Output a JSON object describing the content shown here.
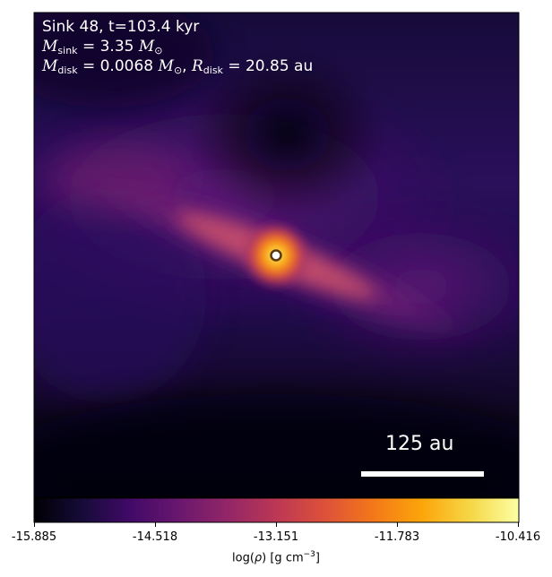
{
  "annotation": {
    "line1": "Sink 48, t=103.4 kyr",
    "sink_symbol": "M",
    "sink_sub": "sink",
    "sink_value": " = 3.35 ",
    "sink_unit_symbol": "M",
    "sink_unit_sub": "⊙",
    "disk_symbol": "M",
    "disk_sub": "disk",
    "disk_value": " = 0.0068 ",
    "disk_unit_symbol": "M",
    "disk_unit_sub": "⊙",
    "sep": ", ",
    "rdisk_symbol": "R",
    "rdisk_sub": "disk",
    "rdisk_value": " = 20.85 au"
  },
  "scale_bar": {
    "label": "125 au"
  },
  "colorbar": {
    "ticks": [
      "-15.885",
      "-14.518",
      "-13.151",
      "-11.783",
      "-10.416"
    ],
    "label_prefix": "log(",
    "label_rho": "ρ",
    "label_mid": ") [g cm",
    "label_exp": "−3",
    "label_end": "]",
    "colormap": "inferno",
    "range": [
      -15.885,
      -10.416
    ]
  },
  "colors": {
    "background_dark": "#0c0621",
    "envelope_purple": "#3b0f70",
    "filament_orange": "#e3613f",
    "sink_marker_fill": "#ffffff",
    "sink_marker_edge": "#5a3a10",
    "scale_bar": "#ffffff"
  }
}
